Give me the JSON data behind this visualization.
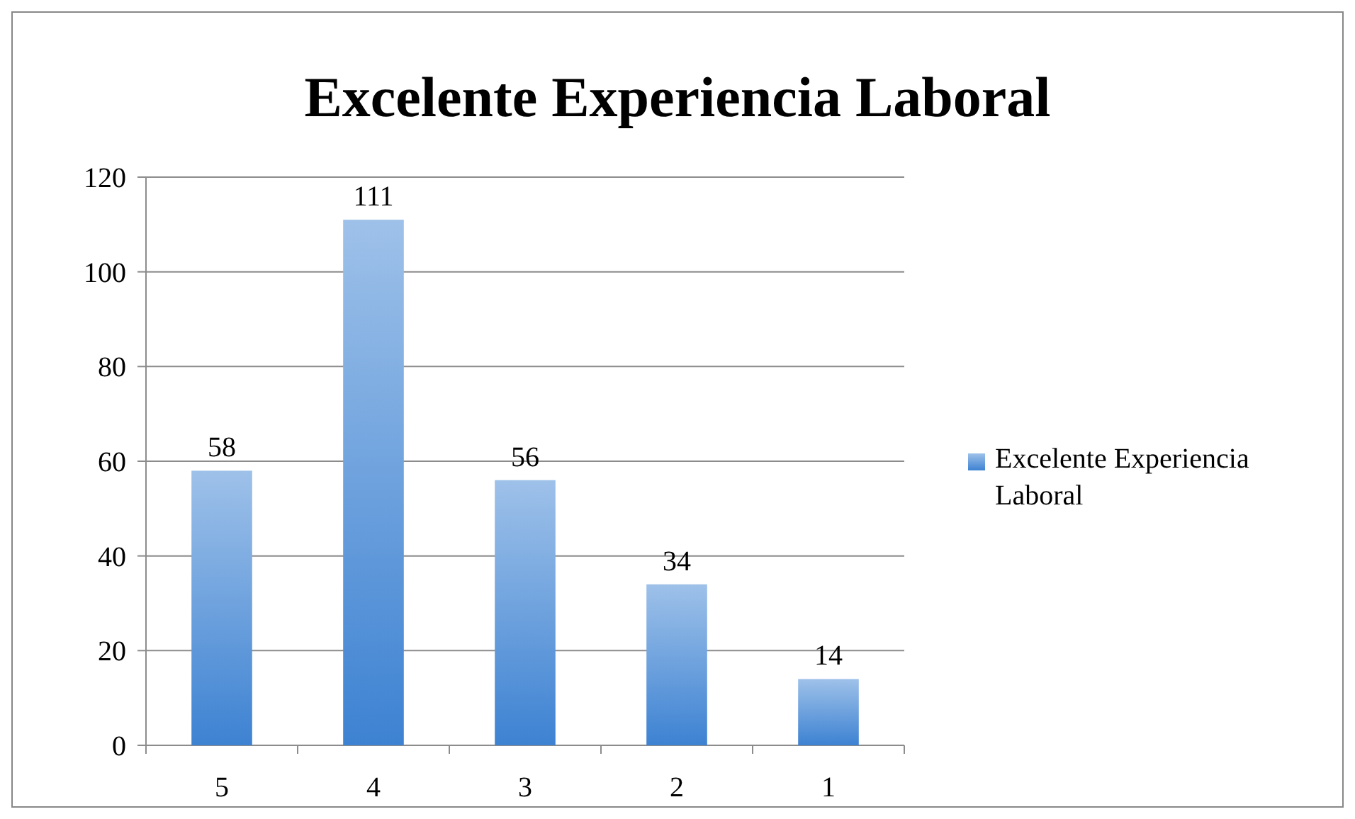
{
  "chart_data": {
    "type": "bar",
    "title": "Excelente Experiencia Laboral",
    "categories": [
      "5",
      "4",
      "3",
      "2",
      "1"
    ],
    "series": [
      {
        "name": "Excelente Experiencia Laboral",
        "color": "#3d82d2",
        "values": [
          58,
          111,
          56,
          34,
          14
        ]
      }
    ],
    "ylim": [
      0,
      120
    ],
    "yticks": [
      0,
      20,
      40,
      60,
      80,
      100,
      120
    ],
    "grid": "y",
    "legend": "right",
    "data_labels": true
  }
}
